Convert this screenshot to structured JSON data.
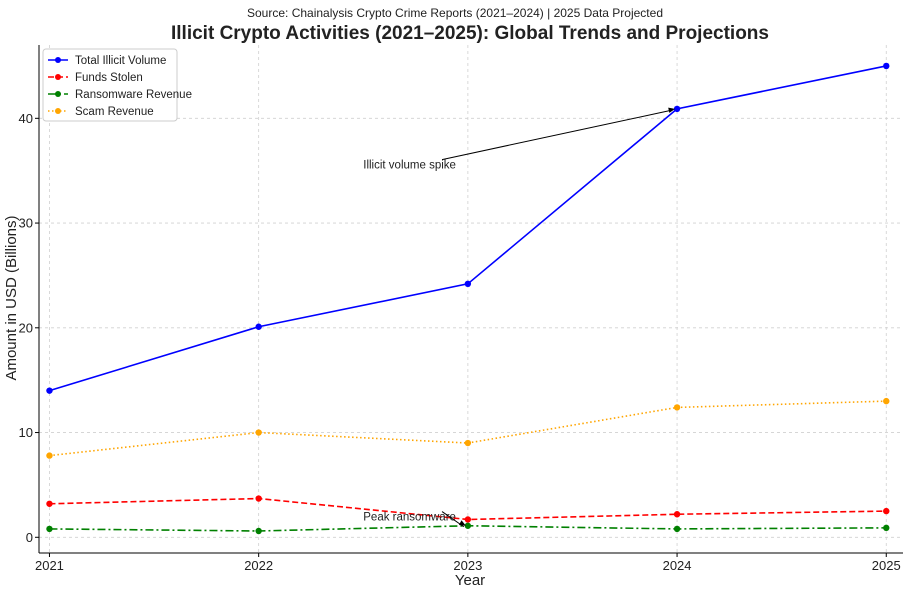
{
  "chart_data": {
    "type": "line",
    "title": "Illicit Crypto Activities (2021–2025): Global Trends and Projections",
    "subtitle": "Source: Chainalysis Crypto Crime Reports (2021–2024) | 2025 Data Projected",
    "xlabel": "Year",
    "ylabel": "Amount in USD (Billions)",
    "x": [
      "2021",
      "2022",
      "2023",
      "2024",
      "2025"
    ],
    "ylim": [
      -1.5,
      47
    ],
    "yticks": [
      0,
      10,
      20,
      30,
      40
    ],
    "grid": true,
    "legend_position": "top-left",
    "series": [
      {
        "name": "Total Illicit Volume",
        "values": [
          14.0,
          20.1,
          24.2,
          40.9,
          45.0
        ],
        "color": "#0000ff",
        "style": "solid"
      },
      {
        "name": "Funds Stolen",
        "values": [
          3.2,
          3.7,
          1.7,
          2.2,
          2.5
        ],
        "color": "#ff0000",
        "style": "dashed"
      },
      {
        "name": "Ransomware Revenue",
        "values": [
          0.8,
          0.6,
          1.1,
          0.8,
          0.9
        ],
        "color": "#008000",
        "style": "dashdot"
      },
      {
        "name": "Scam Revenue",
        "values": [
          7.8,
          10.0,
          9.0,
          12.4,
          13.0
        ],
        "color": "#ffa500",
        "style": "dotted"
      }
    ],
    "annotations": [
      {
        "text": "Illicit volume spike",
        "x": "2024",
        "y": 40.9,
        "text_x": 2022.5,
        "text_y": 35.2
      },
      {
        "text": "Peak ransomware",
        "x": "2023",
        "y": 1.1,
        "text_x": 2022.5,
        "text_y": 1.6
      }
    ]
  }
}
